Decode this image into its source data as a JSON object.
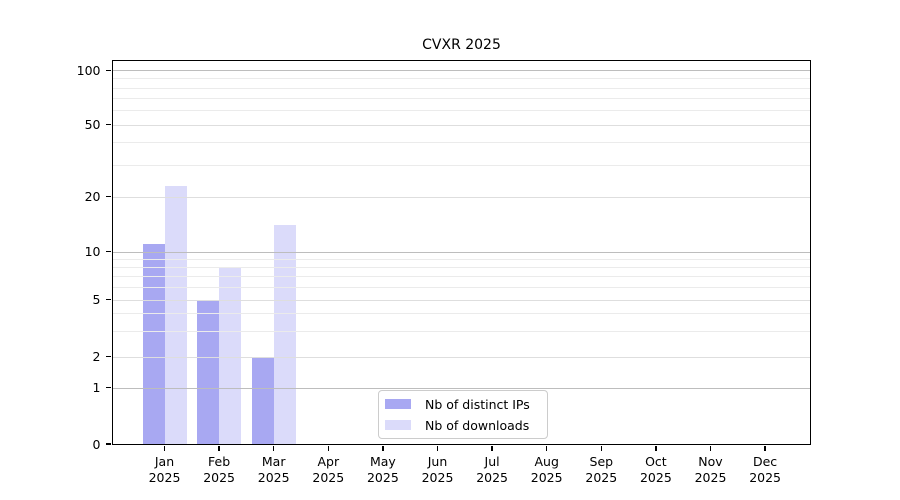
{
  "chart_data": {
    "type": "bar",
    "title": "CVXR 2025",
    "categories": [
      "Jan",
      "Feb",
      "Mar",
      "Apr",
      "May",
      "Jun",
      "Jul",
      "Aug",
      "Sep",
      "Oct",
      "Nov",
      "Dec"
    ],
    "category_year": "2025",
    "series": [
      {
        "name": "Nb of distinct IPs",
        "color": "#a8a8f2",
        "values": [
          11,
          5,
          2,
          0,
          0,
          0,
          0,
          0,
          0,
          0,
          0,
          0
        ]
      },
      {
        "name": "Nb of downloads",
        "color": "#dbdbfa",
        "values": [
          23,
          8,
          14,
          0,
          0,
          0,
          0,
          0,
          0,
          0,
          0,
          0
        ]
      }
    ],
    "xlabel": "",
    "ylabel": "",
    "y_axis": {
      "scale": "symlog",
      "tick_values": [
        0,
        1,
        2,
        5,
        10,
        20,
        50,
        100
      ],
      "tick_labels": [
        "0",
        "1",
        "2",
        "5",
        "10",
        "20",
        "50",
        "100"
      ],
      "ylim": [
        0,
        113
      ],
      "major_gridlines": [
        1,
        10,
        100
      ],
      "labeled_minor_gridlines": [
        2,
        5,
        20,
        50
      ],
      "minor_gridlines": [
        3,
        4,
        6,
        7,
        8,
        9,
        30,
        40,
        60,
        70,
        80,
        90
      ]
    },
    "legend": {
      "position": "lower center",
      "entries": [
        "Nb of distinct IPs",
        "Nb of downloads"
      ]
    },
    "grid": "on"
  },
  "colors": {
    "bar_distinct_ips": "#a8a8f2",
    "bar_downloads": "#dbdbfa",
    "grid_major": "#bdbdbd",
    "grid_labeled_minor": "#dedede",
    "grid_minor": "#ebebeb",
    "axis_frame": "#000000",
    "legend_border": "#cccccc",
    "background": "#ffffff"
  }
}
